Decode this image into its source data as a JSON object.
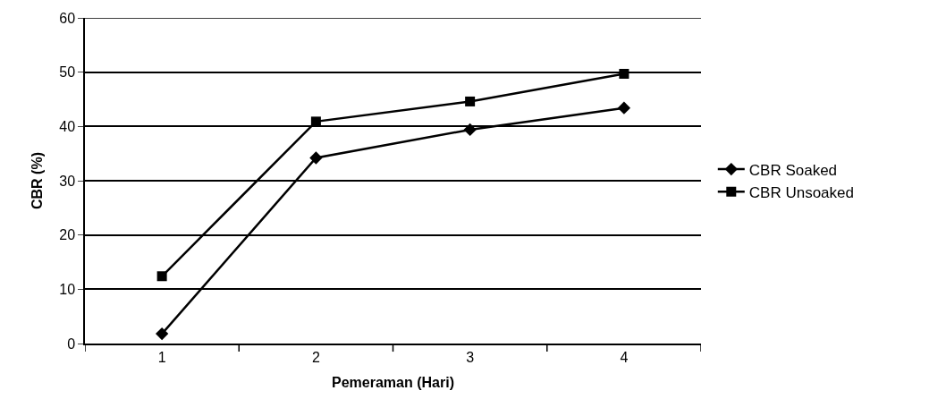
{
  "chart_data": {
    "type": "line",
    "xlabel": "Pemeraman (Hari)",
    "ylabel": "CBR (%)",
    "categories": [
      "1",
      "2",
      "3",
      "4"
    ],
    "series": [
      {
        "name": "CBR Soaked",
        "color": "#000000",
        "marker": "diamond",
        "values": [
          1.8,
          34.2,
          39.4,
          43.4
        ]
      },
      {
        "name": "CBR Unsoaked",
        "color": "#000000",
        "marker": "square",
        "values": [
          12.4,
          40.9,
          44.6,
          49.7
        ]
      }
    ],
    "ylim": [
      0,
      60
    ],
    "yticks": [
      0,
      10,
      20,
      30,
      40,
      50,
      60
    ],
    "grid": "y",
    "legend": "right",
    "line_style": "solid"
  }
}
